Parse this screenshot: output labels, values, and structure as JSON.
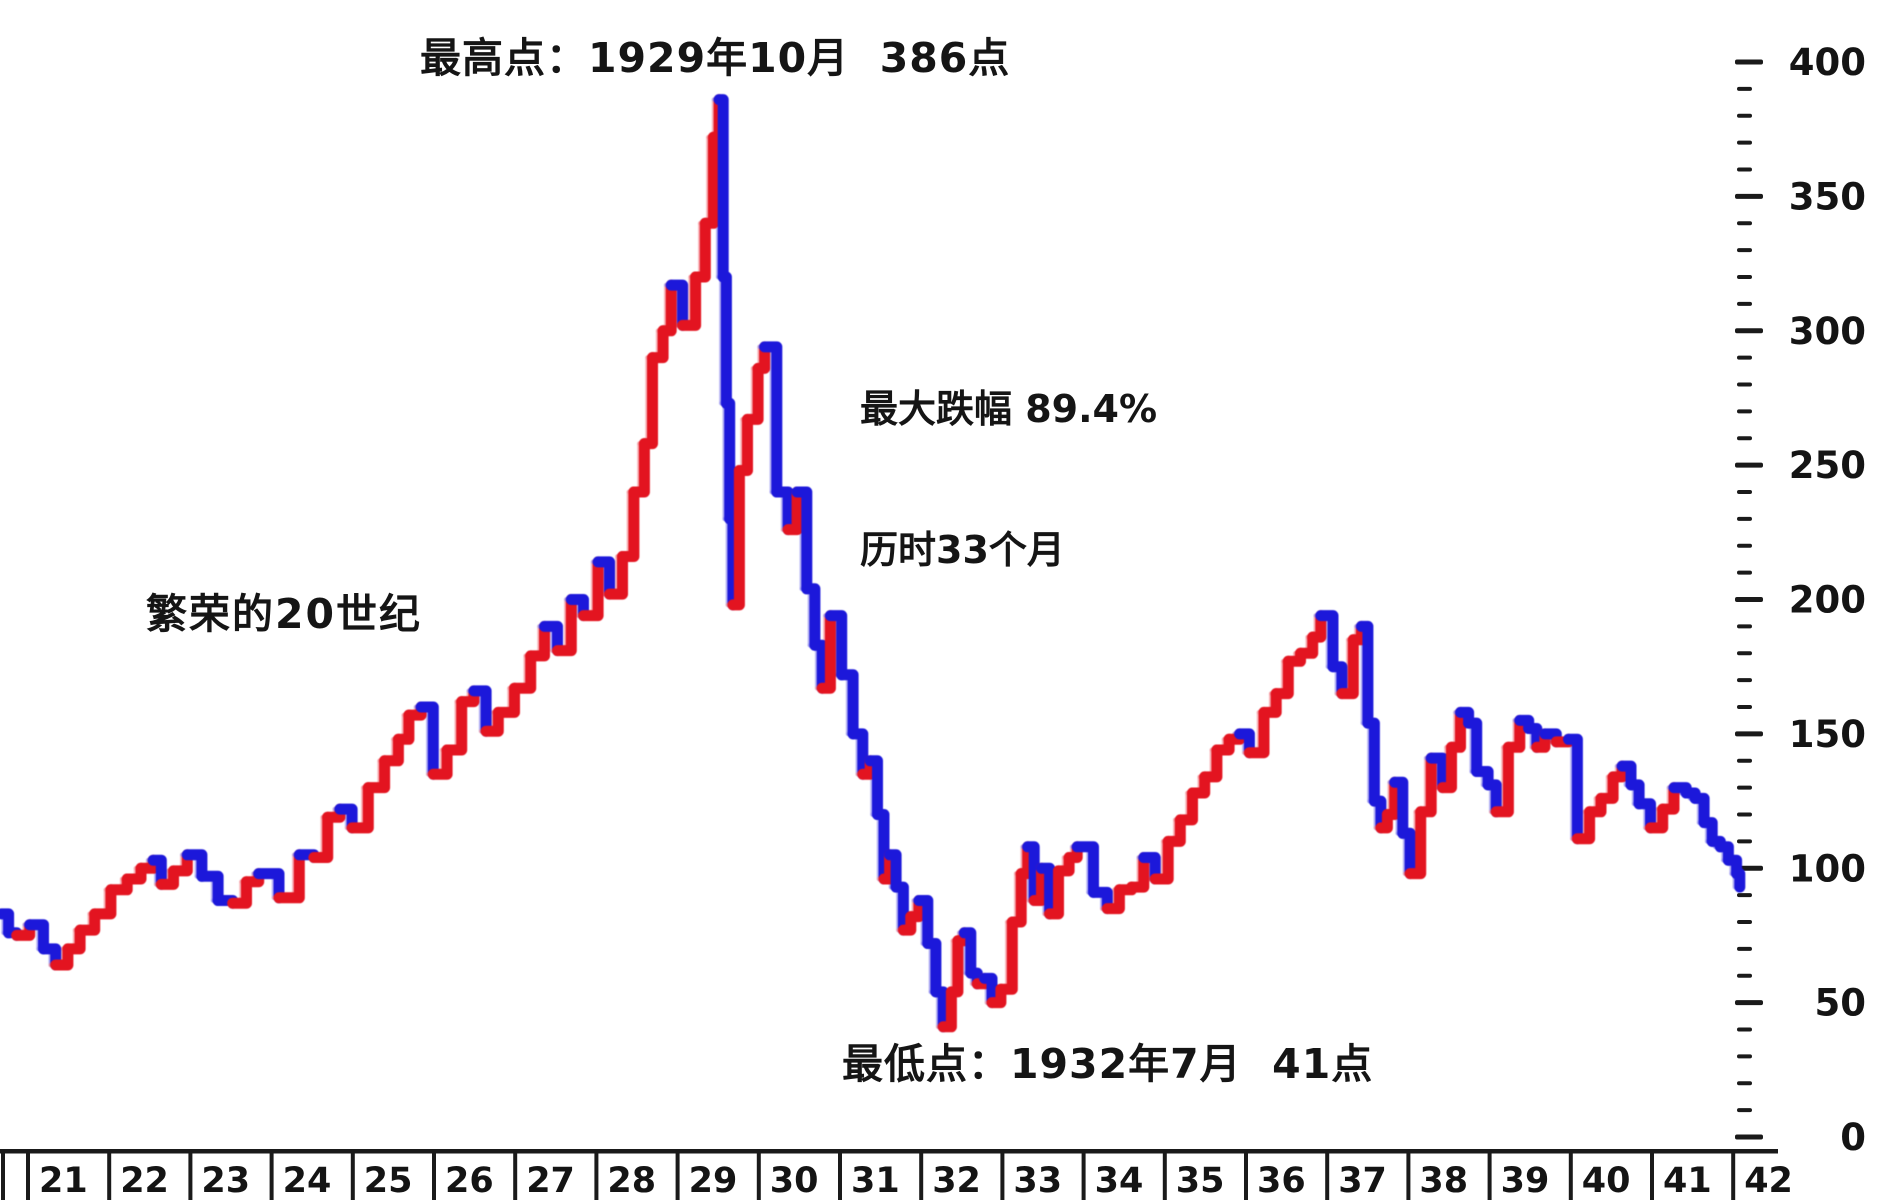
{
  "chart_data": {
    "type": "line",
    "style": "stepped high-low bars, red = rising month, blue = falling month",
    "up_color": "#e31420",
    "down_color": "#1c18da",
    "up_echo_color": "#f59aa0",
    "down_echo_color": "#9e9af0",
    "axis_color": "#1a1a1a",
    "annotations": {
      "peak": "最高点：1929年10月  386点",
      "drawdown_line1": "最大跌幅 89.4%",
      "drawdown_line2": "历时33个月",
      "roaring20s": "繁荣的20世纪",
      "trough": "最低点：1932年7月  41点"
    },
    "x": {
      "year_labels": [
        "21",
        "22",
        "23",
        "24",
        "25",
        "26",
        "27",
        "28",
        "29",
        "30",
        "31",
        "32",
        "33",
        "34",
        "35",
        "36",
        "37",
        "38",
        "39",
        "40",
        "41",
        "42"
      ],
      "range": [
        1920.9,
        1942.5
      ]
    },
    "y": {
      "tick_labels": [
        "400",
        "350",
        "300",
        "250",
        "200",
        "150",
        "100",
        "50",
        "0"
      ],
      "tick_values": [
        400,
        350,
        300,
        250,
        200,
        150,
        100,
        50,
        0
      ],
      "minor_step": 10,
      "range": [
        0,
        400
      ],
      "side": "right"
    },
    "points": [
      [
        1920.93,
        83
      ],
      [
        1921.02,
        76
      ],
      [
        1921.12,
        75
      ],
      [
        1921.28,
        79
      ],
      [
        1921.45,
        70
      ],
      [
        1921.6,
        64
      ],
      [
        1921.75,
        70
      ],
      [
        1921.9,
        77
      ],
      [
        1922.08,
        83
      ],
      [
        1922.28,
        92
      ],
      [
        1922.48,
        96
      ],
      [
        1922.65,
        100
      ],
      [
        1922.8,
        103
      ],
      [
        1922.9,
        94
      ],
      [
        1923.05,
        99
      ],
      [
        1923.22,
        105
      ],
      [
        1923.4,
        97
      ],
      [
        1923.6,
        88
      ],
      [
        1923.78,
        87
      ],
      [
        1923.95,
        95
      ],
      [
        1924.1,
        98
      ],
      [
        1924.35,
        89
      ],
      [
        1924.6,
        105
      ],
      [
        1924.78,
        104
      ],
      [
        1924.95,
        119
      ],
      [
        1925.1,
        122
      ],
      [
        1925.25,
        115
      ],
      [
        1925.45,
        130
      ],
      [
        1925.65,
        140
      ],
      [
        1925.82,
        148
      ],
      [
        1925.95,
        157
      ],
      [
        1926.1,
        160
      ],
      [
        1926.25,
        135
      ],
      [
        1926.42,
        144
      ],
      [
        1926.6,
        162
      ],
      [
        1926.75,
        166
      ],
      [
        1926.9,
        151
      ],
      [
        1927.05,
        158
      ],
      [
        1927.25,
        167
      ],
      [
        1927.45,
        179
      ],
      [
        1927.62,
        190
      ],
      [
        1927.78,
        181
      ],
      [
        1927.95,
        200
      ],
      [
        1928.1,
        194
      ],
      [
        1928.28,
        214
      ],
      [
        1928.42,
        202
      ],
      [
        1928.58,
        216
      ],
      [
        1928.72,
        240
      ],
      [
        1928.85,
        258
      ],
      [
        1928.95,
        290
      ],
      [
        1929.08,
        300
      ],
      [
        1929.18,
        317
      ],
      [
        1929.32,
        302
      ],
      [
        1929.48,
        320
      ],
      [
        1929.6,
        340
      ],
      [
        1929.7,
        372
      ],
      [
        1929.77,
        386
      ],
      [
        1929.82,
        320
      ],
      [
        1929.86,
        273
      ],
      [
        1929.9,
        230
      ],
      [
        1929.94,
        198
      ],
      [
        1930.02,
        248
      ],
      [
        1930.12,
        267
      ],
      [
        1930.25,
        286
      ],
      [
        1930.33,
        294
      ],
      [
        1930.48,
        240
      ],
      [
        1930.62,
        226
      ],
      [
        1930.73,
        240
      ],
      [
        1930.85,
        204
      ],
      [
        1930.95,
        183
      ],
      [
        1931.04,
        167
      ],
      [
        1931.14,
        194
      ],
      [
        1931.28,
        172
      ],
      [
        1931.42,
        150
      ],
      [
        1931.54,
        135
      ],
      [
        1931.63,
        140
      ],
      [
        1931.72,
        120
      ],
      [
        1931.8,
        96
      ],
      [
        1931.87,
        105
      ],
      [
        1931.95,
        93
      ],
      [
        1932.04,
        77
      ],
      [
        1932.13,
        82
      ],
      [
        1932.23,
        88
      ],
      [
        1932.34,
        72
      ],
      [
        1932.44,
        54
      ],
      [
        1932.53,
        41
      ],
      [
        1932.63,
        54
      ],
      [
        1932.71,
        73
      ],
      [
        1932.79,
        76
      ],
      [
        1932.87,
        61
      ],
      [
        1932.95,
        57
      ],
      [
        1933.04,
        59
      ],
      [
        1933.13,
        50
      ],
      [
        1933.24,
        55
      ],
      [
        1933.38,
        80
      ],
      [
        1933.49,
        98
      ],
      [
        1933.57,
        108
      ],
      [
        1933.65,
        88
      ],
      [
        1933.74,
        100
      ],
      [
        1933.84,
        83
      ],
      [
        1933.95,
        99
      ],
      [
        1934.08,
        104
      ],
      [
        1934.18,
        108
      ],
      [
        1934.38,
        91
      ],
      [
        1934.55,
        85
      ],
      [
        1934.7,
        92
      ],
      [
        1934.85,
        93
      ],
      [
        1935.0,
        104
      ],
      [
        1935.14,
        96
      ],
      [
        1935.3,
        110
      ],
      [
        1935.45,
        118
      ],
      [
        1935.6,
        128
      ],
      [
        1935.75,
        134
      ],
      [
        1935.9,
        144
      ],
      [
        1936.05,
        148
      ],
      [
        1936.18,
        150
      ],
      [
        1936.3,
        143
      ],
      [
        1936.48,
        158
      ],
      [
        1936.63,
        165
      ],
      [
        1936.78,
        177
      ],
      [
        1936.93,
        180
      ],
      [
        1937.08,
        186
      ],
      [
        1937.18,
        194
      ],
      [
        1937.33,
        175
      ],
      [
        1937.44,
        165
      ],
      [
        1937.58,
        185
      ],
      [
        1937.68,
        190
      ],
      [
        1937.76,
        154
      ],
      [
        1937.84,
        125
      ],
      [
        1937.92,
        115
      ],
      [
        1938.0,
        120
      ],
      [
        1938.09,
        132
      ],
      [
        1938.19,
        113
      ],
      [
        1938.28,
        98
      ],
      [
        1938.41,
        121
      ],
      [
        1938.54,
        141
      ],
      [
        1938.68,
        130
      ],
      [
        1938.79,
        145
      ],
      [
        1938.9,
        158
      ],
      [
        1939.0,
        154
      ],
      [
        1939.1,
        136
      ],
      [
        1939.24,
        131
      ],
      [
        1939.34,
        121
      ],
      [
        1939.49,
        145
      ],
      [
        1939.63,
        155
      ],
      [
        1939.74,
        152
      ],
      [
        1939.84,
        145
      ],
      [
        1939.94,
        150
      ],
      [
        1940.08,
        147
      ],
      [
        1940.23,
        148
      ],
      [
        1940.34,
        111
      ],
      [
        1940.49,
        121
      ],
      [
        1940.63,
        126
      ],
      [
        1940.78,
        134
      ],
      [
        1940.89,
        138
      ],
      [
        1941.0,
        131
      ],
      [
        1941.1,
        124
      ],
      [
        1941.24,
        115
      ],
      [
        1941.39,
        122
      ],
      [
        1941.53,
        130
      ],
      [
        1941.68,
        128
      ],
      [
        1941.79,
        126
      ],
      [
        1941.9,
        117
      ],
      [
        1942.0,
        110
      ],
      [
        1942.1,
        108
      ],
      [
        1942.2,
        103
      ],
      [
        1942.3,
        98
      ],
      [
        1942.34,
        93
      ]
    ]
  }
}
